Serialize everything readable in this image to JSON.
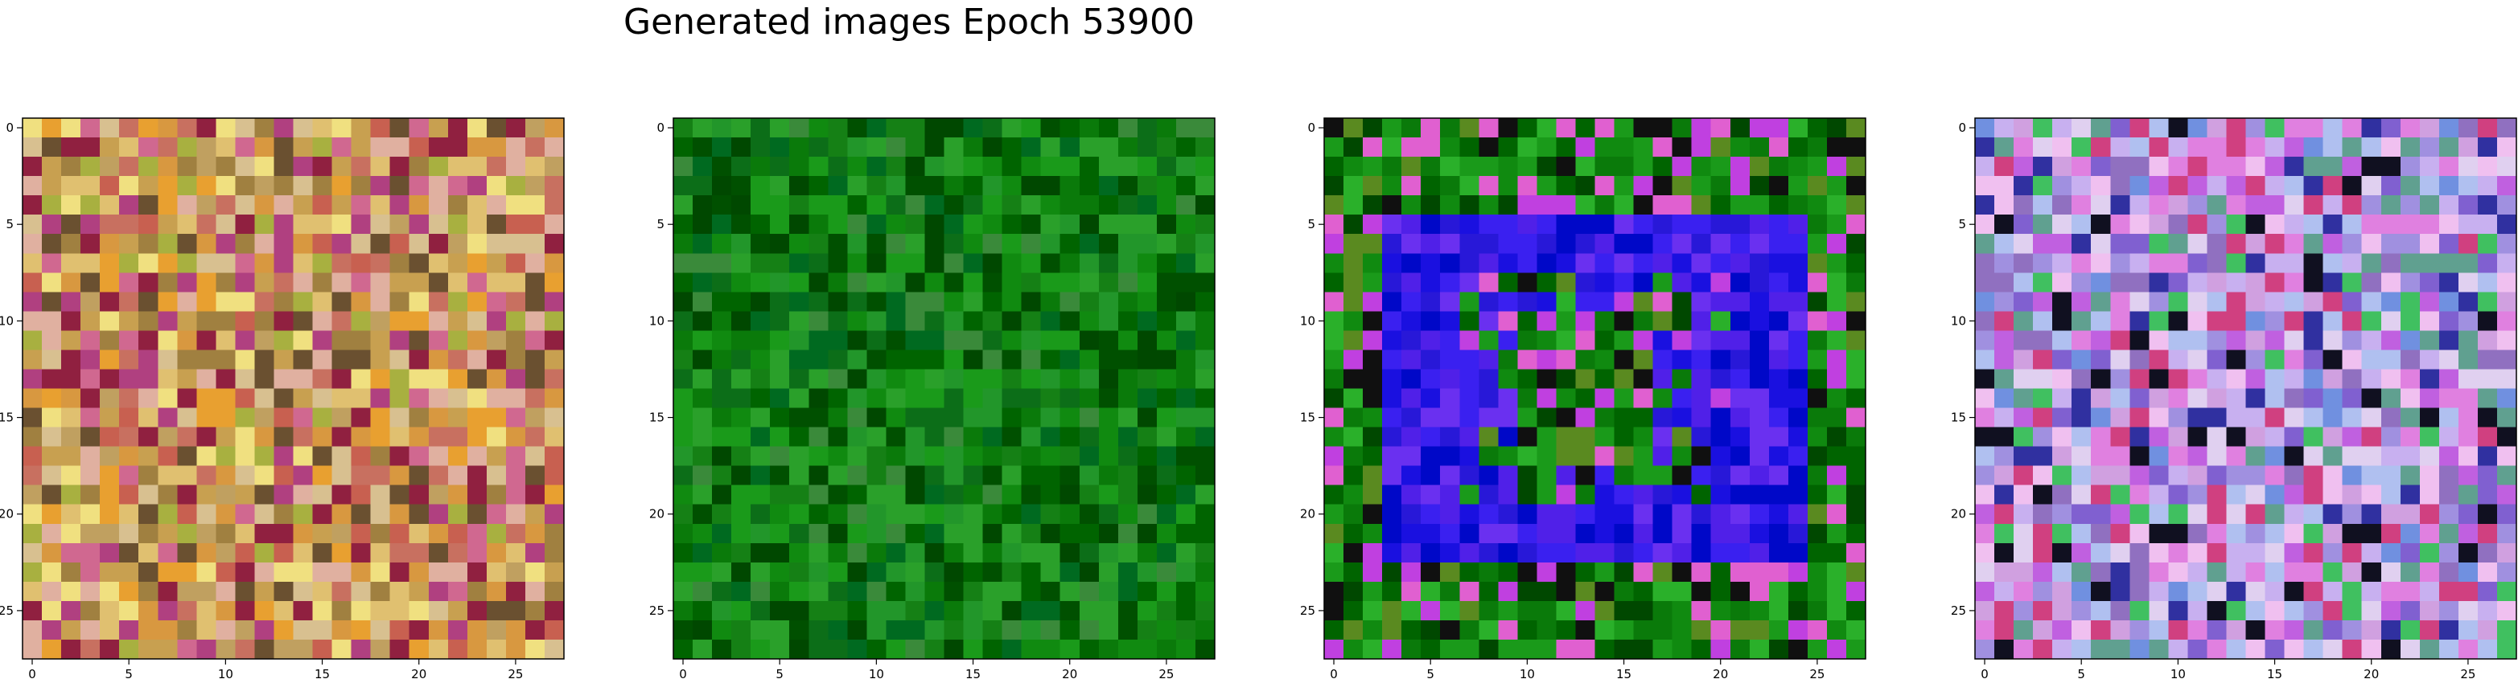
{
  "figure": {
    "title": "Generated images Epoch 53900"
  },
  "chart_data": [
    {
      "type": "heatmap",
      "title": "",
      "xlabel": "",
      "ylabel": "",
      "xlim": [
        -0.5,
        27.5
      ],
      "ylim": [
        27.5,
        -0.5
      ],
      "grid": false,
      "x_ticks": [
        "0",
        "5",
        "10",
        "15",
        "20",
        "25"
      ],
      "y_ticks": [
        "0",
        "5",
        "10",
        "15",
        "20",
        "25"
      ],
      "palette": [
        "#a08040",
        "#c8a050",
        "#d89840",
        "#e8a030",
        "#c87060",
        "#d06890",
        "#b04080",
        "#902040",
        "#c0a060",
        "#a8b040",
        "#e0c070",
        "#f0e080",
        "#d8c090",
        "#c86050",
        "#6a5030",
        "#e0b0a0"
      ]
    },
    {
      "type": "heatmap",
      "title": "",
      "xlabel": "",
      "ylabel": "",
      "xlim": [
        -0.5,
        27.5
      ],
      "ylim": [
        27.5,
        -0.5
      ],
      "grid": false,
      "x_ticks": [
        "0",
        "5",
        "10",
        "15",
        "20",
        "25"
      ],
      "y_ticks": [
        "0",
        "5",
        "10",
        "15",
        "20",
        "25"
      ],
      "palette": [
        "#006400",
        "#0a7a0a",
        "#108a10",
        "#1a9a1a",
        "#005000",
        "#2aa02a",
        "#0c6e18",
        "#3a8a3a",
        "#006a20",
        "#158015",
        "#004800",
        "#22962a"
      ]
    },
    {
      "type": "heatmap",
      "title": "",
      "xlabel": "",
      "ylabel": "",
      "xlim": [
        -0.5,
        27.5
      ],
      "ylim": [
        27.5,
        -0.5
      ],
      "grid": false,
      "x_ticks": [
        "0",
        "5",
        "10",
        "15",
        "20",
        "25"
      ],
      "y_ticks": [
        "0",
        "5",
        "10",
        "15",
        "20",
        "25"
      ],
      "palette": [
        "#1a10e0",
        "#3a20f0",
        "#5020e8",
        "#0008c8",
        "#2818d8",
        "#6a30f0",
        "#108a10",
        "#006400",
        "#1a9a1a",
        "#0a7a0a",
        "#2ab02a",
        "#004800",
        "#5a8a20",
        "#101010",
        "#e060d0",
        "#c040e0"
      ]
    },
    {
      "type": "heatmap",
      "title": "",
      "xlabel": "",
      "ylabel": "",
      "xlim": [
        -0.5,
        27.5
      ],
      "ylim": [
        27.5,
        -0.5
      ],
      "grid": false,
      "x_ticks": [
        "0",
        "5",
        "10",
        "15",
        "20",
        "25"
      ],
      "y_ticks": [
        "0",
        "5",
        "10",
        "15",
        "20",
        "25"
      ],
      "palette": [
        "#c8b0f0",
        "#a090e0",
        "#e080e0",
        "#8060d0",
        "#b0c0f0",
        "#d0a0e0",
        "#60a090",
        "#3030a0",
        "#f0c0f0",
        "#9070c0",
        "#e0d0f0",
        "#40c060",
        "#d04080",
        "#101020",
        "#7090e0",
        "#c060e0"
      ]
    }
  ]
}
